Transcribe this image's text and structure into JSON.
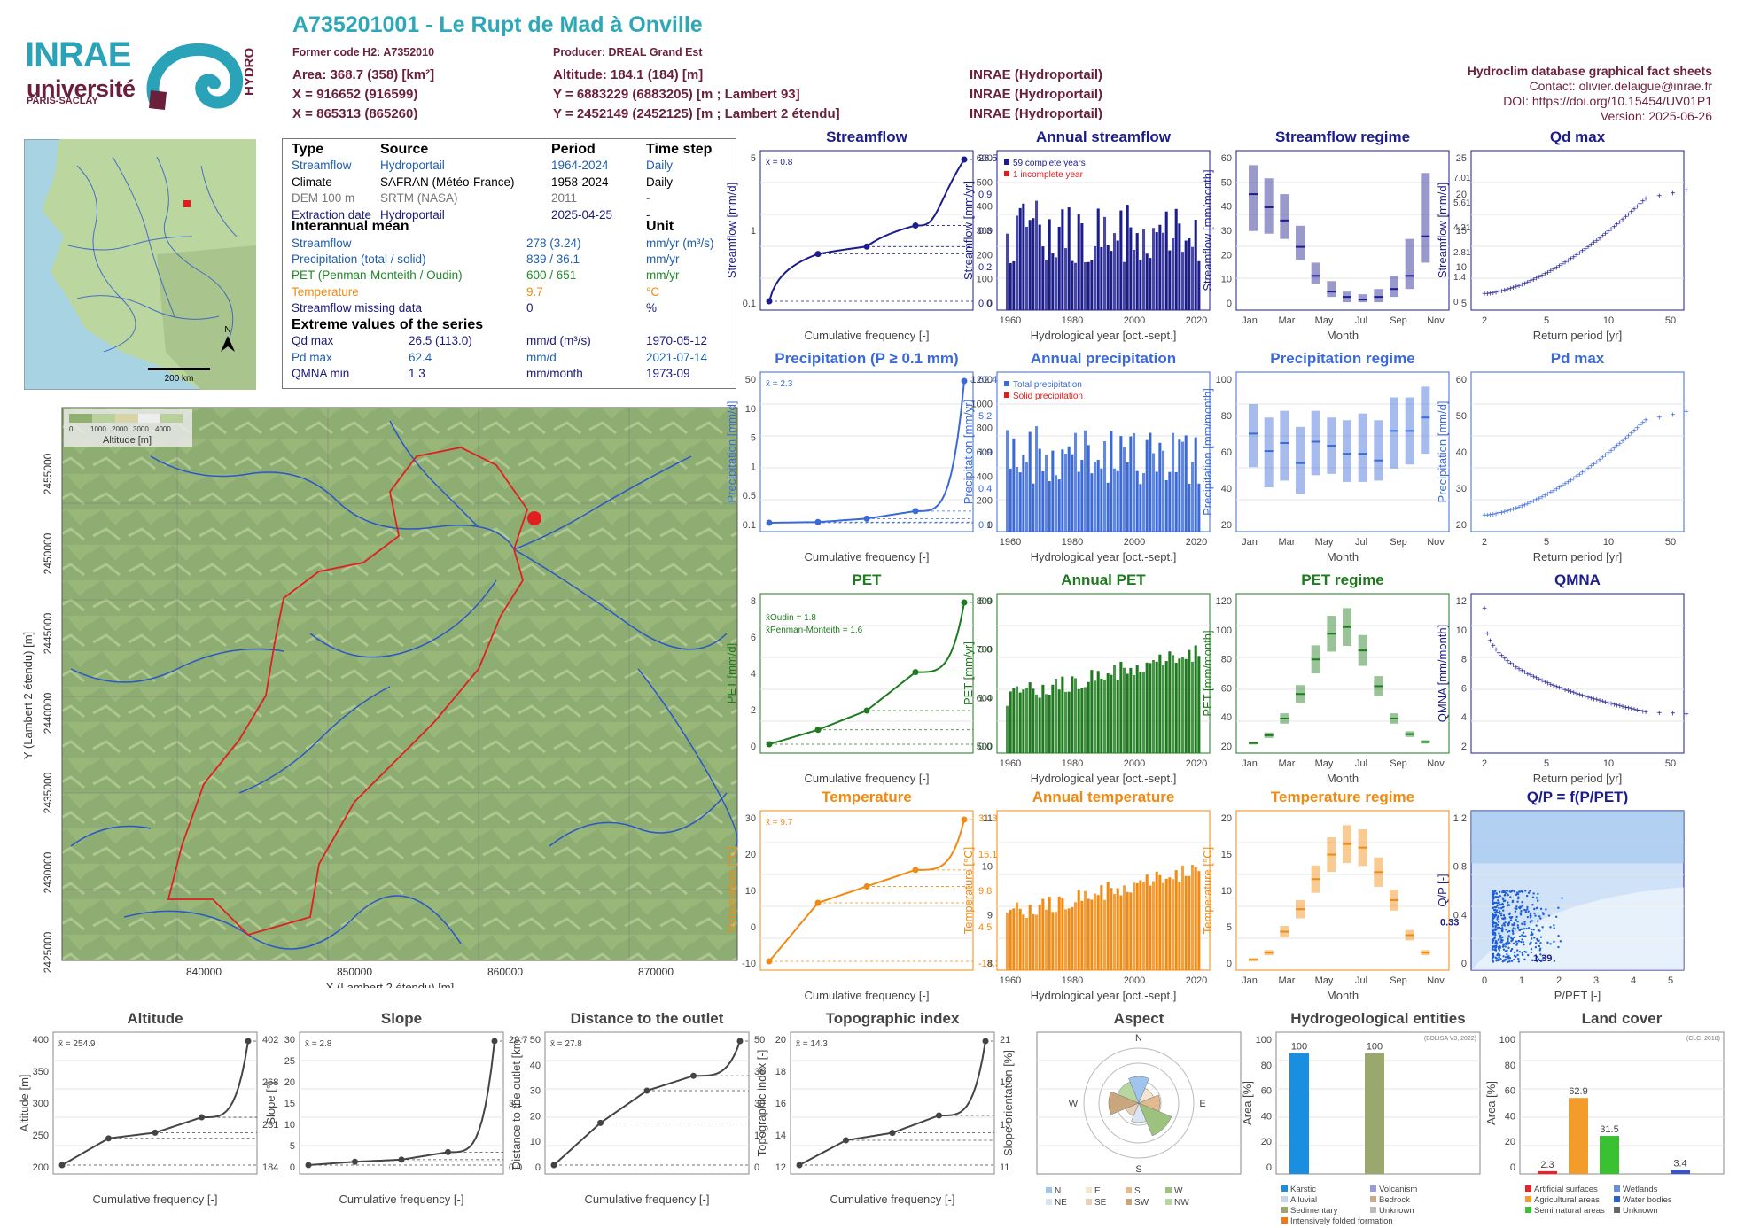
{
  "header": {
    "title": "A735201001 - Le Rupt de Mad à Onville",
    "former_code": "Former code H2: A7352010",
    "producer": "Producer: DREAL Grand Est",
    "area": "Area: 368.7 (358) [km²]",
    "altitude": "Altitude: 184.1 (184) [m]",
    "x93": "X = 916652 (916599)",
    "y93": "Y = 6883229 (6883205) [m ; Lambert 93]",
    "x2e": "X = 865313 (865260)",
    "y2e": "Y = 2452149 (2452125) [m ; Lambert 2 étendu]",
    "src1": "INRAE (Hydroportail)",
    "src2": "INRAE (Hydroportail)",
    "src3": "INRAE (Hydroportail)",
    "db": "Hydroclim database graphical fact sheets",
    "contact": "Contact: olivier.delaigue@inrae.fr",
    "doi": "DOI: https://doi.org/10.15454/UV01P1",
    "version": "Version: 2025-06-26"
  },
  "logos": {
    "inrae": "INRAE",
    "universite": "université",
    "paris_saclay": "PARIS-SACLAY",
    "hydro": "HYDRO"
  },
  "minimap": {
    "scale": "200 km",
    "north": "N"
  },
  "info": {
    "h_type": "Type",
    "h_source": "Source",
    "h_period": "Period",
    "h_step": "Time step",
    "rows": [
      {
        "t": "Streamflow",
        "s": "Hydroportail",
        "p": "1964-2024",
        "st": "Daily",
        "c": "cb"
      },
      {
        "t": "Climate",
        "s": "SAFRAN (Météo-France)",
        "p": "1958-2024",
        "st": "Daily",
        "c": "ck"
      },
      {
        "t": "DEM 100 m",
        "s": "SRTM (NASA)",
        "p": "2011",
        "st": "-",
        "c": "cgr"
      },
      {
        "t": "Extraction date",
        "s": "Hydroportail",
        "p": "2025-04-25",
        "st": "-",
        "c": "cbl"
      }
    ],
    "h_mean": "Interannual mean",
    "h_unit": "Unit",
    "means": [
      {
        "n": "Streamflow",
        "v": "278 (3.24)",
        "u": "mm/yr (m³/s)",
        "c": "cb"
      },
      {
        "n": "Precipitation (total / solid)",
        "v": "839 / 36.1",
        "u": "mm/yr",
        "c": "cb"
      },
      {
        "n": "PET (Penman-Monteith / Oudin)",
        "v": "600 / 651",
        "u": "mm/yr",
        "c": "cg"
      },
      {
        "n": "Temperature",
        "v": "9.7",
        "u": "°C",
        "c": "co"
      },
      {
        "n": "Streamflow missing data",
        "v": "0",
        "u": "%",
        "c": "cbl"
      }
    ],
    "h_ext": "Extreme values of the series",
    "ext": [
      {
        "n": "Qd max",
        "v": "26.5 (113.0)",
        "u": "mm/d (m³/s)",
        "d": "1970-05-12",
        "c": "cbl"
      },
      {
        "n": "Pd max",
        "v": "62.4",
        "u": "mm/d",
        "d": "2021-07-14",
        "c": "cb"
      },
      {
        "n": "QMNA min",
        "v": "1.3",
        "u": "mm/month",
        "d": "1973-09",
        "c": "cbl"
      }
    ]
  },
  "map": {
    "legend_ticks": [
      "0",
      "1000",
      "2000",
      "3000",
      "4000"
    ],
    "legend_title": "Altitude [m]",
    "xlabel": "X (Lambert 2 étendu) [m]",
    "ylabel": "Y (Lambert 2 étendu) [m]",
    "xticks": [
      "840000",
      "850000",
      "860000",
      "870000"
    ],
    "yticks": [
      "2455000",
      "2450000",
      "2445000",
      "2440000",
      "2435000",
      "2430000",
      "2425000"
    ]
  },
  "chart_data": [
    {
      "id": "streamflow_fdc",
      "type": "line",
      "title": "Streamflow",
      "color": "#1c1c8c",
      "xlabel": "Cumulative frequency [-]",
      "ylabel": "Streamflow [mm/d]",
      "scale": "log",
      "mean": "x̄ = 0.8",
      "x": [
        0,
        0.25,
        0.5,
        0.75,
        1
      ],
      "y": [
        0.02,
        0.22,
        0.32,
        0.93,
        26.5
      ],
      "right_labels": [
        "26.5",
        "0.9",
        "0.3",
        "0.2",
        "0.0"
      ],
      "yticks": [
        "5",
        "1",
        "0.1"
      ]
    },
    {
      "id": "annual_streamflow",
      "type": "bar",
      "title": "Annual streamflow",
      "color": "#1c1c8c",
      "xlabel": "Hydrological year [oct.-sept.]",
      "ylabel": "Streamflow [mm/yr]",
      "legend": [
        "59 complete years",
        "1 incomplete year"
      ],
      "yticks": [
        "600",
        "500",
        "400",
        "300",
        "200",
        "100",
        "0"
      ],
      "xticks": [
        "1960",
        "1980",
        "2000",
        "2020"
      ]
    },
    {
      "id": "streamflow_regime",
      "type": "box",
      "title": "Streamflow regime",
      "color": "#1c1c8c",
      "xlabel": "Month",
      "ylabel": "Streamflow [mm/month]",
      "y2label": "Streamflow [m³/s]",
      "median": [
        44,
        39,
        34,
        24,
        13,
        7,
        5,
        4,
        5,
        8,
        13,
        28
      ],
      "q10": [
        30,
        29,
        27,
        19,
        10,
        5,
        3,
        3,
        3,
        5,
        8,
        18
      ],
      "q90": [
        55,
        50,
        44,
        32,
        18,
        11,
        7,
        6,
        8,
        13,
        27,
        52
      ],
      "yticks": [
        "60",
        "50",
        "40",
        "30",
        "20",
        "10",
        "0"
      ],
      "y2ticks": [
        "7.01",
        "5.61",
        "4.21",
        "2.81",
        "1.4",
        "0"
      ],
      "xticks": [
        "Jan",
        "Mar",
        "May",
        "Jul",
        "Sep",
        "Nov"
      ]
    },
    {
      "id": "qd_max",
      "type": "scatter",
      "title": "Qd max",
      "color": "#1c1c8c",
      "xlabel": "Return period [yr]",
      "ylabel": "Streamflow [mm/d]",
      "yticks": [
        "25",
        "20",
        "15",
        "10",
        "5"
      ],
      "xticks": [
        "2",
        "5",
        "10",
        "50"
      ]
    },
    {
      "id": "precip_fdc",
      "type": "line",
      "title": "Precipitation (P ≥ 0.1 mm)",
      "color": "#3b6ad8",
      "xlabel": "Cumulative frequency [-]",
      "ylabel": "Precipitation [mm/d]",
      "mean": "x̄ = 2.3",
      "x": [
        0,
        0.25,
        0.5,
        0.75,
        1
      ],
      "y": [
        0.1,
        0.4,
        1.9,
        5.2,
        62.4
      ],
      "right_labels": [
        "62.4",
        "5.2",
        "1.9",
        "0.4",
        "0.1"
      ],
      "yticks": [
        "50",
        "10",
        "5",
        "1",
        "0.5",
        "0.1"
      ]
    },
    {
      "id": "annual_precip",
      "type": "bar",
      "title": "Annual precipitation",
      "color": "#3b6ad8",
      "xlabel": "Hydrological year [oct.-sept.]",
      "ylabel": "Precipitation [mm/yr]",
      "legend": [
        "Total precipitation",
        "Solid precipitation"
      ],
      "yticks": [
        "1200",
        "1000",
        "800",
        "600",
        "400",
        "200",
        "0"
      ],
      "xticks": [
        "1960",
        "1980",
        "2000",
        "2020"
      ]
    },
    {
      "id": "precip_regime",
      "type": "box",
      "title": "Precipitation regime",
      "color": "#3b6ad8",
      "xlabel": "Month",
      "ylabel": "Precipitation [mm/month]",
      "median": [
        73,
        60,
        66,
        51,
        67,
        64,
        58,
        58,
        53,
        75,
        75,
        85
      ],
      "q10": [
        48,
        33,
        38,
        28,
        42,
        43,
        37,
        37,
        38,
        47,
        50,
        58
      ],
      "q90": [
        95,
        85,
        90,
        78,
        90,
        85,
        83,
        88,
        83,
        100,
        100,
        108
      ],
      "yticks": [
        "100",
        "80",
        "60",
        "40",
        "20"
      ],
      "xticks": [
        "Jan",
        "Mar",
        "May",
        "Jul",
        "Sep",
        "Nov"
      ]
    },
    {
      "id": "pd_max",
      "type": "scatter",
      "title": "Pd max",
      "color": "#3b6ad8",
      "xlabel": "Return period [yr]",
      "ylabel": "Precipitation [mm/d]",
      "yticks": [
        "60",
        "50",
        "40",
        "30",
        "20"
      ],
      "xticks": [
        "2",
        "5",
        "10",
        "50"
      ]
    },
    {
      "id": "pet_fdc",
      "type": "line",
      "title": "PET",
      "color": "#1e7a1e",
      "xlabel": "Cumulative frequency [-]",
      "ylabel": "PET [mm/d]",
      "mean1": "x̄Oudin = 1.8",
      "mean2": "x̄Penman-Monteith = 1.6",
      "x": [
        0,
        0.25,
        0.5,
        0.75,
        1
      ],
      "y": [
        0.0,
        0.6,
        1.4,
        3.0,
        5.9
      ],
      "right_labels": [
        "5.9",
        "3.0",
        "1.4",
        "0.0"
      ],
      "yticks": [
        "8",
        "6",
        "4",
        "2",
        "0"
      ]
    },
    {
      "id": "annual_pet",
      "type": "bar",
      "title": "Annual PET",
      "color": "#1e7a1e",
      "xlabel": "Hydrological year [oct.-sept.]",
      "ylabel": "PET [mm/yr]",
      "yticks": [
        "800",
        "700",
        "600",
        "500"
      ],
      "xticks": [
        "1960",
        "1980",
        "2000",
        "2020"
      ]
    },
    {
      "id": "pet_regime",
      "type": "box",
      "title": "PET regime",
      "color": "#1e7a1e",
      "xlabel": "Month",
      "ylabel": "PET [mm/month]",
      "median": [
        9,
        16,
        31,
        53,
        84,
        107,
        113,
        92,
        60,
        31,
        17,
        10
      ],
      "yticks": [
        "120",
        "100",
        "80",
        "60",
        "40",
        "20"
      ],
      "xticks": [
        "Jan",
        "Mar",
        "May",
        "Jul",
        "Sep",
        "Nov"
      ]
    },
    {
      "id": "qmna",
      "type": "scatter",
      "title": "QMNA",
      "color": "#1c1c8c",
      "xlabel": "Return period [yr]",
      "ylabel": "QMNA [mm/month]",
      "yticks": [
        "12",
        "10",
        "8",
        "6",
        "4",
        "2"
      ],
      "xticks": [
        "2",
        "5",
        "10",
        "50"
      ]
    },
    {
      "id": "temp_fdc",
      "type": "line",
      "title": "Temperature",
      "color": "#f08a12",
      "xlabel": "Cumulative frequency [-]",
      "ylabel": "Temperature [°C]",
      "mean": "x̄ = 9.7",
      "x": [
        0,
        0.25,
        0.5,
        0.75,
        1
      ],
      "y": [
        -14.3,
        4.5,
        9.8,
        15.1,
        31.3
      ],
      "right_labels": [
        "31.3",
        "15.1",
        "9.8",
        "4.5",
        "-14.3"
      ],
      "yticks": [
        "30",
        "20",
        "10",
        "0",
        "-10"
      ]
    },
    {
      "id": "annual_temp",
      "type": "bar",
      "title": "Annual temperature",
      "color": "#f08a12",
      "xlabel": "Hydrological year [oct.-sept.]",
      "ylabel": "Temperature [°C]",
      "yticks": [
        "11",
        "10",
        "9",
        "8"
      ],
      "xticks": [
        "1960",
        "1980",
        "2000",
        "2020"
      ]
    },
    {
      "id": "temp_regime",
      "type": "box",
      "title": "Temperature regime",
      "color": "#f08a12",
      "xlabel": "Month",
      "ylabel": "Temperature [°C]",
      "median": [
        1.5,
        2.5,
        5.5,
        8.7,
        13,
        16.5,
        18,
        17.5,
        14,
        10,
        5,
        2.5
      ],
      "yticks": [
        "20",
        "15",
        "10",
        "5",
        "0"
      ],
      "xticks": [
        "Jan",
        "Mar",
        "May",
        "Jul",
        "Sep",
        "Nov"
      ]
    },
    {
      "id": "qp_ppet",
      "type": "scatter",
      "title": "Q/P = f(P/PET)",
      "color": "#1c1c8c",
      "xlabel": "P/PET [-]",
      "ylabel": "Q/P [-]",
      "point_labels": [
        "0.33",
        "1.39"
      ],
      "yticks": [
        "1.2",
        "0.8",
        "0.4",
        "0"
      ],
      "xticks": [
        "0",
        "1",
        "2",
        "3",
        "4",
        "5"
      ]
    },
    {
      "id": "altitude_cdf",
      "type": "line",
      "title": "Altitude",
      "color": "#444",
      "xlabel": "Cumulative frequency [-]",
      "ylabel": "Altitude [m]",
      "mean": "x̄ = 254.9",
      "x": [
        0,
        0.25,
        0.5,
        0.75,
        1
      ],
      "y": [
        184,
        231,
        241,
        268,
        402
      ],
      "right_labels": [
        "402",
        "268",
        "231",
        "184"
      ],
      "yticks": [
        "400",
        "350",
        "300",
        "250",
        "200"
      ]
    },
    {
      "id": "slope_cdf",
      "type": "line",
      "title": "Slope",
      "color": "#444",
      "xlabel": "Cumulative frequency [-]",
      "ylabel": "Slope [°]",
      "mean": "x̄ = 2.8",
      "x": [
        0,
        0.25,
        0.5,
        0.75,
        1
      ],
      "y": [
        0,
        0.8,
        1.3,
        3.1,
        29.7
      ],
      "right_labels": [
        "29.7",
        "3.1",
        "0.0"
      ],
      "yticks": [
        "30",
        "25",
        "20",
        "15",
        "10",
        "5",
        "0"
      ]
    },
    {
      "id": "distance_cdf",
      "type": "line",
      "title": "Distance to the outlet",
      "color": "#444",
      "xlabel": "Cumulative frequency [-]",
      "ylabel": "Distance to the outlet [km]",
      "mean": "x̄ = 27.8",
      "x": [
        0,
        0.25,
        0.5,
        0.75,
        1
      ],
      "y": [
        0,
        17,
        30,
        36,
        50
      ],
      "right_labels": [
        "50",
        "36",
        "30",
        "17",
        "0"
      ],
      "yticks": [
        "50",
        "40",
        "30",
        "20",
        "10",
        "0"
      ]
    },
    {
      "id": "topo_cdf",
      "type": "line",
      "title": "Topographic index",
      "color": "#444",
      "xlabel": "Cumulative frequency [-]",
      "ylabel": "Topographic index [-]",
      "mean": "x̄ = 14.3",
      "x": [
        0,
        0.25,
        0.5,
        0.75,
        1
      ],
      "y": [
        11,
        13,
        13.6,
        15,
        21
      ],
      "right_labels": [
        "21",
        "15",
        "13",
        "11"
      ],
      "yticks": [
        "20",
        "18",
        "16",
        "14",
        "12"
      ]
    },
    {
      "id": "aspect",
      "type": "rose",
      "title": "Aspect",
      "ylabel": "Slope orientation [%]",
      "dirs": [
        "N",
        "E",
        "S",
        "W"
      ],
      "rings": [
        "20",
        "30",
        "20",
        "30"
      ],
      "legend": [
        "N",
        "E",
        "S",
        "W",
        "NE",
        "SE",
        "SW",
        "NW"
      ]
    },
    {
      "id": "hydrogeo",
      "type": "bar",
      "title": "Hydrogeological entities",
      "ylabel": "Area [%]",
      "note": "(BDLISA V3, 2022)",
      "values": [
        "100",
        "100"
      ],
      "yticks": [
        "100",
        "80",
        "60",
        "40",
        "20",
        "0"
      ],
      "legend": [
        "Karstic",
        "Volcanism",
        "Alluvial",
        "Bedrock",
        "Sedimentary",
        "Unknown",
        "Intensively folded formation"
      ]
    },
    {
      "id": "landcover",
      "type": "bar",
      "title": "Land cover",
      "ylabel": "Area [%]",
      "note": "(CLC, 2018)",
      "values": [
        "2.3",
        "62.9",
        "31.5",
        "3.4"
      ],
      "yticks": [
        "100",
        "80",
        "60",
        "40",
        "20",
        "0"
      ],
      "legend": [
        "Artificial surfaces",
        "Wetlands",
        "Agricultural areas",
        "Water bodies",
        "Semi natural areas",
        "Unknown"
      ]
    }
  ]
}
